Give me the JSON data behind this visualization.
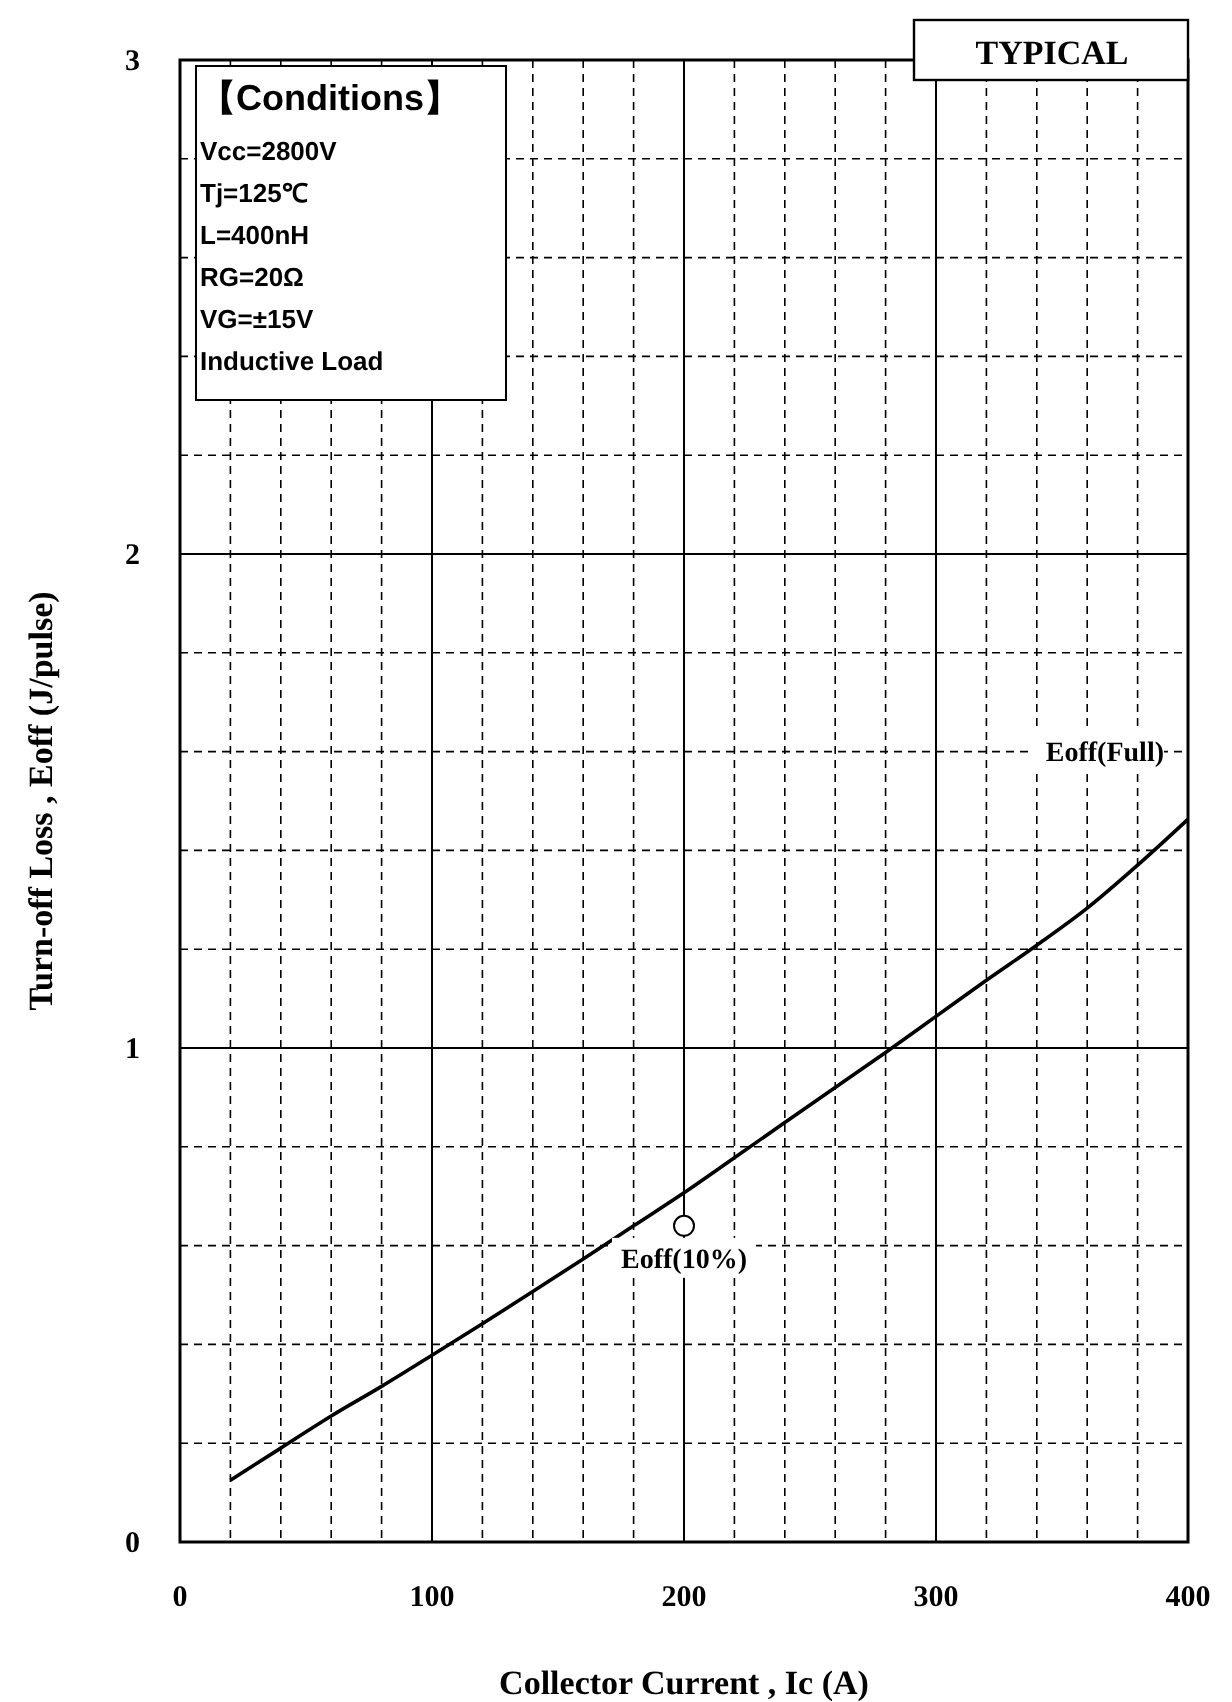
{
  "chart_data": {
    "type": "line",
    "xlabel": "Collector Current , Ic (A)",
    "ylabel": "Turn-off Loss , Eoff (J/pulse)",
    "annotations": [
      "TYPICAL",
      "【Conditions】",
      "Vcc=2800V",
      "Tj=125℃",
      "L=400nH",
      "RG=20Ω",
      "VG=±15V",
      "Inductive Load"
    ],
    "xlim": [
      0,
      400
    ],
    "ylim": [
      0,
      3
    ],
    "xticks": [
      0,
      {
        "value": 20,
        "label": null
      },
      {
        "value": 40,
        "label": null
      },
      {
        "value": 60,
        "label": null
      },
      {
        "value": 80,
        "label": null
      },
      100,
      {
        "value": 120,
        "label": null
      },
      {
        "value": 140,
        "label": null
      },
      {
        "value": 160,
        "label": null
      },
      {
        "value": 180,
        "label": null
      },
      200,
      {
        "value": 220,
        "label": null
      },
      {
        "value": 240,
        "label": null
      },
      {
        "value": 260,
        "label": null
      },
      {
        "value": 280,
        "label": null
      },
      300,
      {
        "value": 320,
        "label": null
      },
      {
        "value": 340,
        "label": null
      },
      {
        "value": 360,
        "label": null
      },
      {
        "value": 380,
        "label": null
      },
      400
    ],
    "yticks": [
      0,
      {
        "value": 0.2,
        "label": null
      },
      {
        "value": 0.4,
        "label": null
      },
      {
        "value": 0.6,
        "label": null
      },
      {
        "value": 0.8,
        "label": null
      },
      1,
      {
        "value": 1.2,
        "label": null
      },
      {
        "value": 1.4,
        "label": null
      },
      {
        "value": 1.6,
        "label": null
      },
      {
        "value": 1.8,
        "label": null
      },
      2,
      {
        "value": 2.2,
        "label": null
      },
      {
        "value": 2.4,
        "label": null
      },
      {
        "value": 2.6,
        "label": null
      },
      {
        "value": 2.8,
        "label": null
      },
      3
    ],
    "grid": true,
    "legend": false,
    "series": [
      {
        "name": "Eoff(Full)",
        "type": "line",
        "color": "#000000",
        "marker": "none",
        "line_style": "solid",
        "x": [
          20,
          40,
          60,
          80,
          100,
          120,
          140,
          160,
          180,
          200,
          220,
          240,
          260,
          280,
          300,
          320,
          340,
          360,
          380,
          400
        ],
        "values": [
          0.125,
          0.19,
          0.255,
          0.315,
          0.378,
          0.442,
          0.507,
          0.573,
          0.64,
          0.707,
          0.778,
          0.849,
          0.92,
          0.991,
          1.064,
          1.137,
          1.208,
          1.283,
          1.37,
          1.463
        ]
      },
      {
        "name": "Eoff(10%)",
        "type": "scatter",
        "color": "#000000",
        "marker": "circle",
        "x": [
          200
        ],
        "values": [
          0.64
        ]
      }
    ]
  }
}
